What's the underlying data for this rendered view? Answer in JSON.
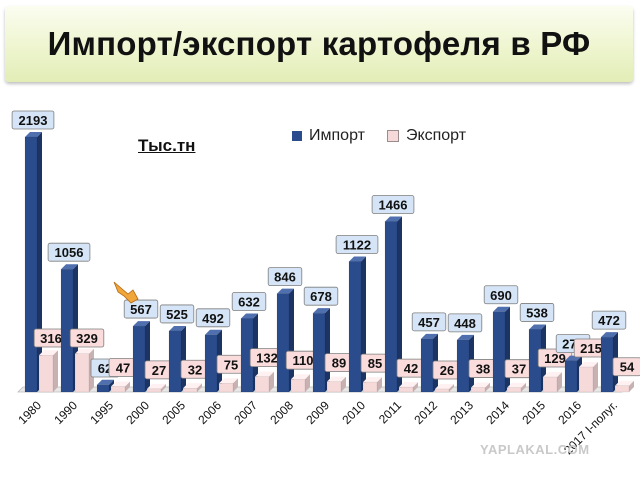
{
  "title": "Импорт/экспорт картофеля в РФ",
  "unit_label": "Тыс.тн",
  "watermark": "YAPLAKAL.COM",
  "colors": {
    "import": "#2b4c8c",
    "export": "#f6dada",
    "import_label_bg": "#d5e5f7",
    "export_label_bg": "#fadcdc"
  },
  "chart_data": {
    "type": "bar",
    "title": "Импорт/экспорт картофеля в РФ",
    "ylabel": "Тыс.тн",
    "legend_position": "top-right",
    "categories": [
      "1980",
      "1990",
      "1995",
      "2000",
      "2005",
      "2006",
      "2007",
      "2008",
      "2009",
      "2010",
      "2011",
      "2012",
      "2013",
      "2014",
      "2015",
      "2016",
      "2017 I-полуг."
    ],
    "series": [
      {
        "name": "Импорт",
        "values": [
          2193,
          1056,
          62,
          567,
          525,
          492,
          632,
          846,
          678,
          1122,
          1466,
          457,
          448,
          690,
          538,
          270,
          472
        ]
      },
      {
        "name": "Экспорт",
        "values": [
          316,
          329,
          47,
          27,
          32,
          75,
          132,
          110,
          89,
          85,
          42,
          26,
          38,
          37,
          129,
          215,
          54
        ]
      }
    ],
    "ylim": [
      0,
      2193
    ],
    "grid": false
  }
}
